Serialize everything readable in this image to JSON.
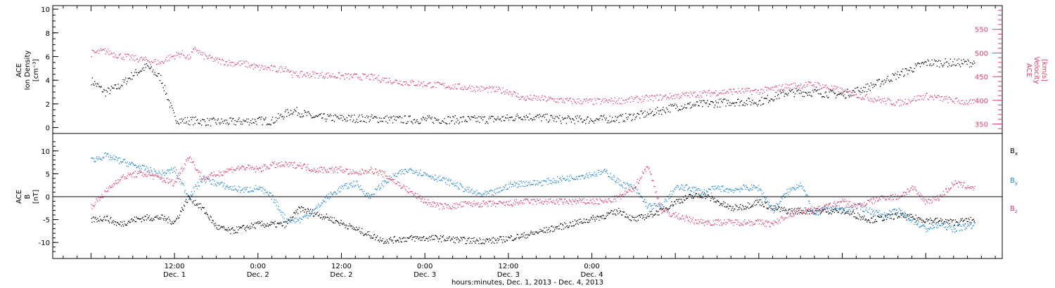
{
  "chart_data": [
    {
      "type": "scatter",
      "panel": "top",
      "ylabel_left": [
        "ACE",
        "Ion Density",
        "[cm⁻³]"
      ],
      "ylabel_right": [
        "ACE",
        "Velocity",
        "[km/s]"
      ],
      "ylim_left": [
        -0.5,
        10.3
      ],
      "yticks_left": [
        "0",
        "2",
        "4",
        "6",
        "8",
        "10"
      ],
      "ylim_right": [
        330,
        600
      ],
      "yticks_right": [
        "350",
        "400",
        "450",
        "500",
        "550"
      ],
      "series": [
        {
          "name": "",
          "axis": "left",
          "color": "#000000",
          "x": [
            0,
            1,
            2,
            4,
            6,
            8,
            10,
            12,
            13,
            15,
            17,
            20,
            23,
            26,
            29,
            32,
            36,
            40,
            44,
            48,
            52,
            56,
            60,
            62,
            64,
            68,
            72,
            76,
            80,
            84,
            88,
            92,
            96,
            100,
            104,
            108,
            112,
            116,
            120,
            124,
            127
          ],
          "y": [
            4.0,
            3.5,
            3.0,
            3.5,
            4.5,
            5.2,
            4.2,
            0.8,
            0.6,
            0.6,
            0.5,
            0.5,
            0.6,
            0.6,
            1.5,
            0.9,
            0.8,
            0.8,
            0.7,
            0.7,
            0.7,
            0.7,
            0.8,
            1.0,
            0.9,
            0.7,
            0.7,
            0.8,
            1.2,
            1.8,
            2.0,
            2.2,
            2.2,
            3.0,
            3.0,
            2.8,
            3.5,
            4.5,
            5.5,
            5.5,
            5.5
          ]
        },
        {
          "name": "",
          "axis": "right",
          "color": "#e33d6a",
          "x": [
            0,
            2,
            4,
            6,
            8,
            10,
            11,
            12,
            13,
            14,
            15,
            16,
            18,
            20,
            22,
            24,
            26,
            27,
            28,
            29,
            32,
            36,
            40,
            44,
            48,
            52,
            56,
            60,
            62,
            64,
            68,
            72,
            76,
            80,
            84,
            88,
            92,
            96,
            100,
            104,
            108,
            112,
            116,
            120,
            124,
            127
          ],
          "y": [
            500,
            505,
            495,
            490,
            485,
            480,
            490,
            495,
            500,
            490,
            510,
            495,
            485,
            480,
            478,
            470,
            468,
            465,
            470,
            455,
            455,
            452,
            450,
            440,
            435,
            430,
            425,
            420,
            405,
            405,
            400,
            398,
            400,
            405,
            410,
            415,
            420,
            420,
            430,
            435,
            420,
            405,
            395,
            410,
            400,
            395
          ]
        }
      ]
    },
    {
      "type": "scatter",
      "panel": "bottom",
      "ylabel_left": [
        "ACE",
        "B",
        "[nT]"
      ],
      "ylim": [
        -13.5,
        13.8
      ],
      "yticks": [
        "-10",
        "-5",
        "0",
        "5",
        "10"
      ],
      "zero_line": true,
      "series": [
        {
          "name": "Bx",
          "color": "#000000",
          "x": [
            0,
            2,
            4,
            6,
            8,
            10,
            12,
            14,
            16,
            18,
            20,
            24,
            28,
            30,
            34,
            38,
            42,
            46,
            50,
            54,
            58,
            62,
            66,
            70,
            74,
            76,
            78,
            82,
            84,
            86,
            88,
            90,
            92,
            94,
            96,
            98,
            100,
            104,
            108,
            112,
            116,
            120,
            124,
            127
          ],
          "y": [
            -5,
            -4.5,
            -6,
            -5,
            -4.5,
            -4.5,
            -5.5,
            0,
            -2.5,
            -6.5,
            -7.5,
            -6,
            -6,
            -2.5,
            -4.5,
            -7,
            -9.5,
            -9,
            -9,
            -9.5,
            -9.5,
            -8.5,
            -7,
            -5.5,
            -4,
            -3,
            -5,
            -3,
            -1,
            0,
            0.5,
            -1,
            -2.5,
            -2,
            -1,
            -2.5,
            -3,
            -3,
            -3,
            -5,
            -4,
            -5,
            -5.5,
            -5
          ]
        },
        {
          "name": "By",
          "color": "#1e87e0",
          "x": [
            0,
            2,
            4,
            6,
            8,
            10,
            12,
            14,
            16,
            18,
            20,
            22,
            24,
            26,
            28,
            30,
            32,
            34,
            36,
            38,
            40,
            42,
            44,
            46,
            48,
            50,
            52,
            54,
            56,
            58,
            60,
            62,
            64,
            66,
            68,
            70,
            72,
            74,
            76,
            78,
            80,
            82,
            84,
            86,
            88,
            90,
            92,
            94,
            96,
            98,
            100,
            102,
            104,
            106,
            108,
            110,
            112,
            114,
            116,
            118,
            120,
            122,
            124,
            127
          ],
          "y": [
            8,
            9,
            8,
            7,
            6,
            5,
            6,
            0,
            4,
            3,
            2,
            1.5,
            2,
            0,
            -5,
            -5,
            -3,
            0,
            2,
            3,
            0,
            3,
            5,
            6,
            5,
            4,
            3,
            1.5,
            0.5,
            1,
            2.5,
            3,
            3,
            3.5,
            4,
            4.5,
            5,
            5.5,
            3,
            2,
            -2,
            -2,
            2,
            2,
            1,
            2,
            1.5,
            2,
            2,
            -3,
            1,
            3,
            -4,
            -2,
            -3,
            -2,
            -3,
            -4,
            -3,
            -5,
            -7,
            -6,
            -7,
            -6
          ]
        },
        {
          "name": "Bz",
          "color": "#e33d6a",
          "x": [
            0,
            2,
            4,
            6,
            8,
            10,
            12,
            14,
            16,
            18,
            20,
            22,
            24,
            26,
            28,
            30,
            32,
            34,
            36,
            38,
            40,
            42,
            44,
            46,
            48,
            50,
            52,
            54,
            56,
            58,
            60,
            62,
            64,
            66,
            68,
            70,
            72,
            74,
            76,
            78,
            80,
            82,
            84,
            86,
            88,
            90,
            92,
            94,
            96,
            98,
            100,
            102,
            104,
            106,
            108,
            110,
            112,
            114,
            116,
            118,
            120,
            122,
            124,
            127
          ],
          "y": [
            -2,
            1,
            4,
            5,
            5,
            4,
            3,
            9,
            4,
            5,
            6,
            6.5,
            6,
            7,
            7,
            7,
            6,
            6,
            6,
            5,
            6,
            5,
            3,
            1,
            -1,
            -2,
            -2,
            -1.5,
            -1.5,
            -1.5,
            -1.5,
            -1,
            -1,
            -1,
            -1,
            -1,
            -1,
            -1,
            0,
            2,
            7,
            -3,
            -4,
            -5,
            -5.5,
            -5.5,
            -5.5,
            -5.5,
            -5.5,
            -6,
            -4,
            -3,
            -3,
            -2,
            -1,
            -2,
            -1,
            0,
            0,
            2,
            -1,
            0,
            3,
            2
          ]
        }
      ]
    }
  ],
  "x_axis": {
    "range_hours": [
      -5.5,
      131
    ],
    "ticks": [
      {
        "hour": 12,
        "time": "12:00",
        "date": "Dec. 1"
      },
      {
        "hour": 24,
        "time": "0:00",
        "date": "Dec. 2"
      },
      {
        "hour": 36,
        "time": "12:00",
        "date": "Dec. 2"
      },
      {
        "hour": 48,
        "time": "0:00",
        "date": "Dec. 3"
      },
      {
        "hour": 60,
        "time": "12:00",
        "date": "Dec. 3"
      },
      {
        "hour": 72,
        "time": "0:00",
        "date": "Dec. 4"
      }
    ],
    "label": "hours:minutes, Dec.  1, 2013 - Dec.  4, 2013"
  },
  "legend": {
    "bx_label": "B",
    "bx_sub": "x",
    "by_label": "B",
    "by_sub": "y",
    "bz_label": "B",
    "bz_sub": "z"
  }
}
